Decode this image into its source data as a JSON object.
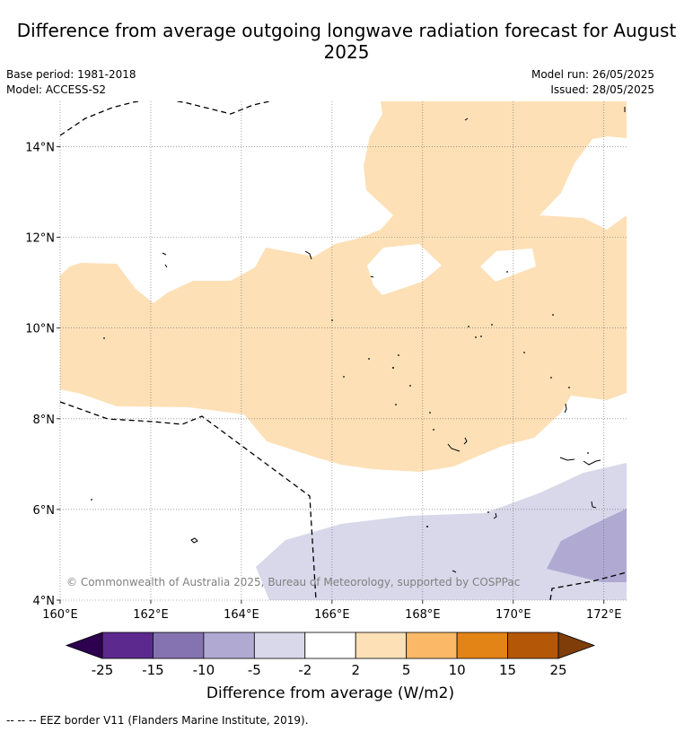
{
  "title": "Difference from average outgoing longwave radiation forecast for August 2025",
  "info": {
    "base_period": "Base period: 1981-2018",
    "model": "Model: ACCESS-S2",
    "model_run": "Model run: 26/05/2025",
    "issued": "Issued: 28/05/2025"
  },
  "map": {
    "lon_range": [
      160,
      172.5
    ],
    "lat_range": [
      4,
      15
    ],
    "lon_ticks": [
      {
        "v": 160,
        "label": "160°E"
      },
      {
        "v": 162,
        "label": "162°E"
      },
      {
        "v": 164,
        "label": "164°E"
      },
      {
        "v": 166,
        "label": "166°E"
      },
      {
        "v": 168,
        "label": "168°E"
      },
      {
        "v": 170,
        "label": "170°E"
      },
      {
        "v": 172,
        "label": "172°E"
      }
    ],
    "lat_ticks": [
      {
        "v": 4,
        "label": "4°N"
      },
      {
        "v": 6,
        "label": "6°N"
      },
      {
        "v": 8,
        "label": "8°N"
      },
      {
        "v": 10,
        "label": "10°N"
      },
      {
        "v": 12,
        "label": "12°N"
      },
      {
        "v": 14,
        "label": "14°N"
      }
    ],
    "grid": true,
    "copyright": "© Commonwealth of Australia 2025, Bureau of Meteorology, supported by COSPPac"
  },
  "colorbar": {
    "label": "Difference from average (W/m2)",
    "tick_labels": [
      "-25",
      "-15",
      "-10",
      "-5",
      "-2",
      "2",
      "5",
      "10",
      "15",
      "25"
    ],
    "colors": [
      "#5c2a8e",
      "#8573b1",
      "#b0a9d2",
      "#d8d8ea",
      "#ffffff",
      "#fde0b6",
      "#fbb968",
      "#e28416",
      "#b45808"
    ],
    "under_color": "#2d0050",
    "over_color": "#7e3d09"
  },
  "legend": {
    "eez_marker": "--  --  --",
    "eez_text": "EEZ border V11 (Flanders Marine Institute, 2019)."
  }
}
